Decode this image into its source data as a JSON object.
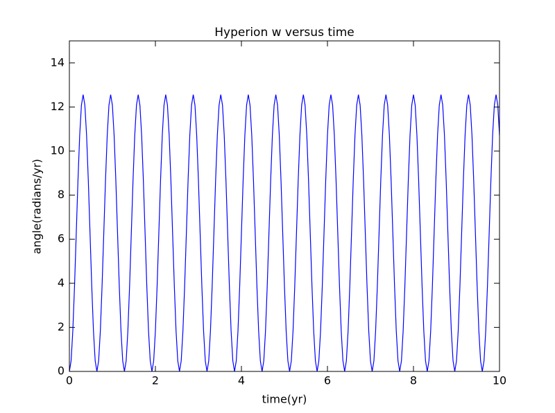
{
  "chart_data": {
    "type": "line",
    "title": "Hyperion w versus time",
    "x_label": "time(yr)",
    "y_label": "angle(radians/yr)",
    "color": "#0000ff",
    "xlim": [
      0,
      10
    ],
    "xticks": [
      0,
      2,
      4,
      6,
      8,
      10
    ],
    "ylim": [
      0,
      15
    ],
    "yticks": [
      0,
      2,
      4,
      6,
      8,
      10,
      12,
      14
    ],
    "x": [
      0,
      0.04,
      0.08,
      0.12,
      0.16,
      0.2,
      0.24,
      0.28,
      0.32,
      0.36,
      0.4,
      0.44,
      0.48,
      0.52,
      0.56,
      0.6,
      0.64,
      0.68,
      0.72,
      0.76,
      0.8,
      0.84,
      0.88,
      0.92,
      0.96,
      1,
      1.04,
      1.08,
      1.12,
      1.16,
      1.2,
      1.24,
      1.28,
      1.32,
      1.36,
      1.4,
      1.44,
      1.48,
      1.52,
      1.56,
      1.6,
      1.64,
      1.68,
      1.72,
      1.76,
      1.8,
      1.84,
      1.88,
      1.92,
      1.96,
      2,
      2.04,
      2.08,
      2.12,
      2.16,
      2.2,
      2.24,
      2.28,
      2.32,
      2.36,
      2.4,
      2.44,
      2.48,
      2.52,
      2.56,
      2.6,
      2.64,
      2.68,
      2.72,
      2.76,
      2.8,
      2.84,
      2.88,
      2.92,
      2.96,
      3,
      3.04,
      3.08,
      3.12,
      3.16,
      3.2,
      3.24,
      3.28,
      3.32,
      3.36,
      3.4,
      3.44,
      3.48,
      3.52,
      3.56,
      3.6,
      3.64,
      3.68,
      3.72,
      3.76,
      3.8,
      3.84,
      3.88,
      3.92,
      3.96,
      4,
      4.04,
      4.08,
      4.12,
      4.16,
      4.2,
      4.24,
      4.28,
      4.32,
      4.36,
      4.4,
      4.44,
      4.48,
      4.52,
      4.56,
      4.6,
      4.64,
      4.68,
      4.72,
      4.76,
      4.8,
      4.84,
      4.88,
      4.92,
      4.96,
      5,
      5.04,
      5.08,
      5.12,
      5.16,
      5.2,
      5.24,
      5.28,
      5.32,
      5.36,
      5.4,
      5.44,
      5.48,
      5.52,
      5.56,
      5.6,
      5.64,
      5.68,
      5.72,
      5.76,
      5.8,
      5.84,
      5.88,
      5.92,
      5.96,
      6,
      6.04,
      6.08,
      6.12,
      6.16,
      6.2,
      6.24,
      6.28,
      6.32,
      6.36,
      6.4,
      6.44,
      6.48,
      6.52,
      6.56,
      6.6,
      6.64,
      6.68,
      6.72,
      6.76,
      6.8,
      6.84,
      6.88,
      6.92,
      6.96,
      7,
      7.04,
      7.08,
      7.12,
      7.16,
      7.2,
      7.24,
      7.28,
      7.32,
      7.36,
      7.4,
      7.44,
      7.48,
      7.52,
      7.56,
      7.6,
      7.64,
      7.68,
      7.72,
      7.76,
      7.8,
      7.84,
      7.88,
      7.92,
      7.96,
      8,
      8.04,
      8.08,
      8.12,
      8.16,
      8.2,
      8.24,
      8.28,
      8.32,
      8.36,
      8.4,
      8.44,
      8.48,
      8.52,
      8.56,
      8.6,
      8.64,
      8.68,
      8.72,
      8.76,
      8.8,
      8.84,
      8.88,
      8.92,
      8.96,
      9,
      9.04,
      9.08,
      9.12,
      9.16,
      9.2,
      9.24,
      9.28,
      9.32,
      9.36,
      9.4,
      9.44,
      9.48,
      9.52,
      9.56,
      9.6,
      9.64,
      9.68,
      9.72,
      9.76,
      9.8,
      9.84,
      9.88,
      9.92,
      9.96,
      10
    ],
    "values": [
      0,
      0.48,
      1.84,
      3.88,
      6.28,
      8.68,
      10.72,
      12.08,
      12.56,
      12.08,
      10.72,
      8.68,
      6.28,
      3.88,
      1.84,
      0.48,
      0,
      0.48,
      1.84,
      3.88,
      6.28,
      8.68,
      10.72,
      12.08,
      12.56,
      12.08,
      10.72,
      8.68,
      6.28,
      3.88,
      1.84,
      0.48,
      0,
      0.48,
      1.84,
      3.88,
      6.28,
      8.68,
      10.72,
      12.08,
      12.56,
      12.08,
      10.72,
      8.68,
      6.28,
      3.88,
      1.84,
      0.48,
      0,
      0.48,
      1.84,
      3.88,
      6.28,
      8.68,
      10.72,
      12.08,
      12.56,
      12.08,
      10.72,
      8.68,
      6.28,
      3.88,
      1.84,
      0.48,
      0,
      0.48,
      1.84,
      3.88,
      6.28,
      8.68,
      10.72,
      12.08,
      12.56,
      12.08,
      10.72,
      8.68,
      6.28,
      3.88,
      1.84,
      0.48,
      0,
      0.48,
      1.84,
      3.88,
      6.28,
      8.68,
      10.72,
      12.08,
      12.56,
      12.08,
      10.72,
      8.68,
      6.28,
      3.88,
      1.84,
      0.48,
      0,
      0.48,
      1.84,
      3.88,
      6.28,
      8.68,
      10.72,
      12.08,
      12.56,
      12.08,
      10.72,
      8.68,
      6.28,
      3.88,
      1.84,
      0.48,
      0,
      0.48,
      1.84,
      3.88,
      6.28,
      8.68,
      10.72,
      12.08,
      12.56,
      12.08,
      10.72,
      8.68,
      6.28,
      3.88,
      1.84,
      0.48,
      0,
      0.48,
      1.84,
      3.88,
      6.28,
      8.68,
      10.72,
      12.08,
      12.56,
      12.08,
      10.72,
      8.68,
      6.28,
      3.88,
      1.84,
      0.48,
      0,
      0.48,
      1.84,
      3.88,
      6.28,
      8.68,
      10.72,
      12.08,
      12.56,
      12.08,
      10.72,
      8.68,
      6.28,
      3.88,
      1.84,
      0.48,
      0,
      0.48,
      1.84,
      3.88,
      6.28,
      8.68,
      10.72,
      12.08,
      12.56,
      12.08,
      10.72,
      8.68,
      6.28,
      3.88,
      1.84,
      0.48,
      0,
      0.48,
      1.84,
      3.88,
      6.28,
      8.68,
      10.72,
      12.08,
      12.56,
      12.08,
      10.72,
      8.68,
      6.28,
      3.88,
      1.84,
      0.48,
      0,
      0.48,
      1.84,
      3.88,
      6.28,
      8.68,
      10.72,
      12.08,
      12.56,
      12.08,
      10.72,
      8.68,
      6.28,
      3.88,
      1.84,
      0.48,
      0,
      0.48,
      1.84,
      3.88,
      6.28,
      8.68,
      10.72,
      12.08,
      12.56,
      12.08,
      10.72,
      8.68,
      6.28,
      3.88,
      1.84,
      0.48,
      0,
      0.48,
      1.84,
      3.88,
      6.28,
      8.68,
      10.72,
      12.08,
      12.56,
      12.08,
      10.72,
      8.68,
      6.28,
      3.88,
      1.84,
      0.48,
      0,
      0.48,
      1.84,
      3.88,
      6.28,
      8.68,
      10.72,
      12.08,
      12.56,
      12.08,
      10.72
    ]
  }
}
